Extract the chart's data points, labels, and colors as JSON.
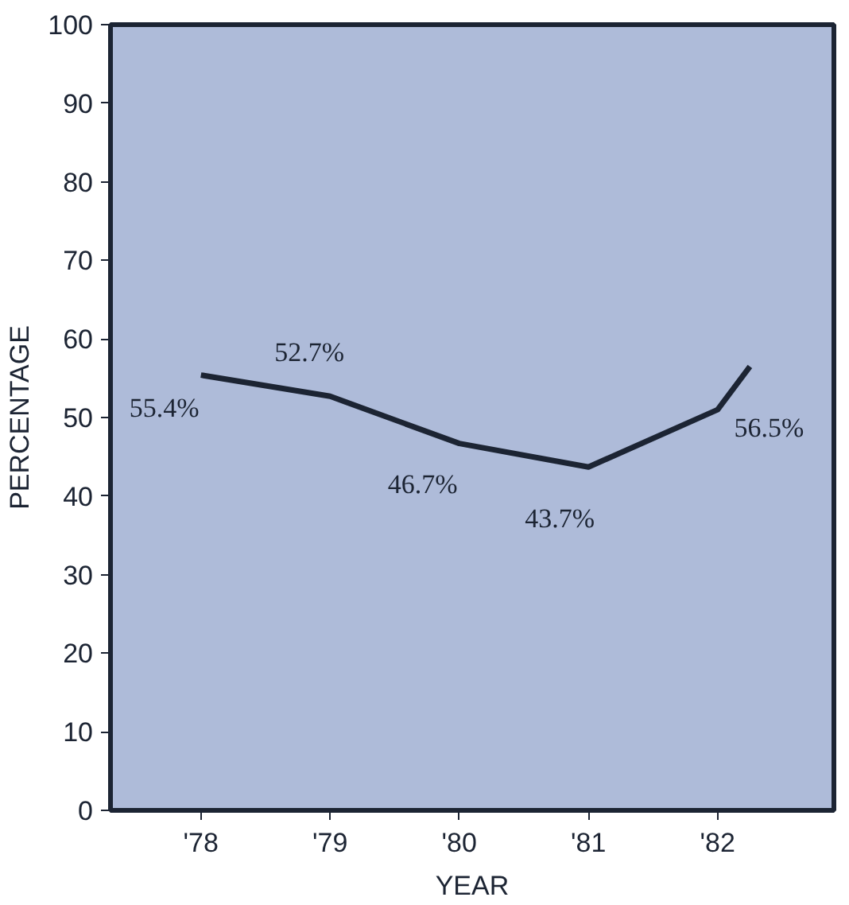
{
  "chart_data": {
    "type": "line",
    "xlabel": "YEAR",
    "ylabel": "PERCENTAGE",
    "x": [
      1978,
      1979,
      1980,
      1981,
      1982,
      1982.25
    ],
    "series": [
      {
        "color": "#1c2433",
        "values": [
          55.4,
          52.7,
          46.7,
          43.7,
          51,
          56.5
        ],
        "value_labels": [
          "55.4%",
          "52.7%",
          "46.7%",
          "43.7%",
          null,
          "56.5%"
        ]
      }
    ],
    "xlim": [
      1977.3,
      1982.9
    ],
    "xticks": [
      {
        "value": 1978,
        "label": "'78"
      },
      {
        "value": 1979,
        "label": "'79"
      },
      {
        "value": 1980,
        "label": "'80"
      },
      {
        "value": 1981,
        "label": "'81"
      },
      {
        "value": 1982,
        "label": "'82"
      }
    ],
    "ylim": [
      0,
      100
    ],
    "yticks": [
      0,
      10,
      20,
      30,
      40,
      50,
      60,
      70,
      80,
      90,
      100
    ]
  }
}
